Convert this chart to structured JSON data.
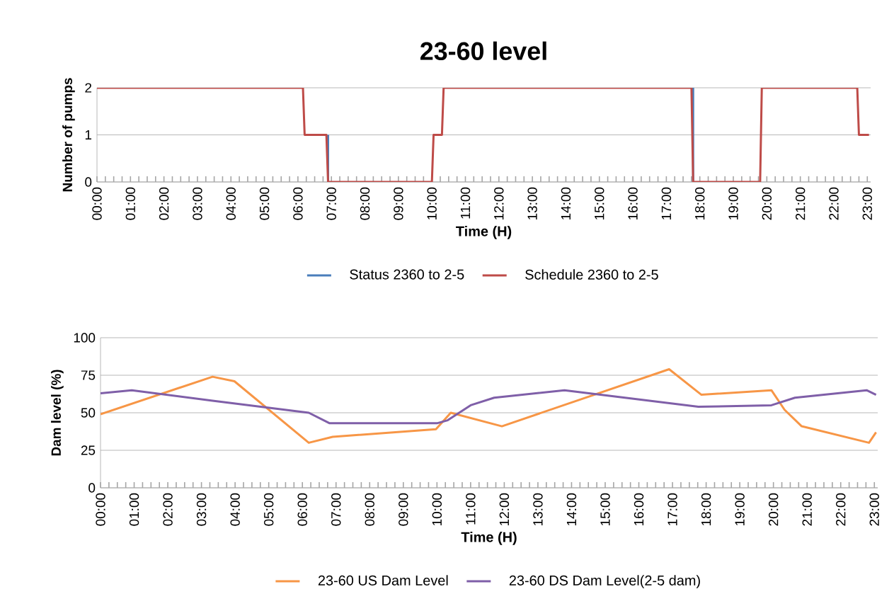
{
  "chart_data": [
    {
      "type": "line",
      "title": "23-60 level",
      "xlabel": "Time (H)",
      "ylabel": "Number of pumps",
      "xlim": [
        0,
        23.1
      ],
      "ylim": [
        0,
        2
      ],
      "yticks": [
        0,
        1,
        2
      ],
      "xticks": [
        {
          "value": 0,
          "label": "00:00"
        },
        {
          "value": 1,
          "label": "01:00"
        },
        {
          "value": 2,
          "label": "02:00"
        },
        {
          "value": 3,
          "label": "03:00"
        },
        {
          "value": 4,
          "label": "04:00"
        },
        {
          "value": 5,
          "label": "05:00"
        },
        {
          "value": 6,
          "label": "06:00"
        },
        {
          "value": 7,
          "label": "07:00"
        },
        {
          "value": 8,
          "label": "08:00"
        },
        {
          "value": 9,
          "label": "09:00"
        },
        {
          "value": 10,
          "label": "10:00"
        },
        {
          "value": 11,
          "label": "11:00"
        },
        {
          "value": 12,
          "label": "12:00"
        },
        {
          "value": 13,
          "label": "13:00"
        },
        {
          "value": 14,
          "label": "14:00"
        },
        {
          "value": 15,
          "label": "15:00"
        },
        {
          "value": 16,
          "label": "16:00"
        },
        {
          "value": 17,
          "label": "17:00"
        },
        {
          "value": 18,
          "label": "18:00"
        },
        {
          "value": 19,
          "label": "19:00"
        },
        {
          "value": 20,
          "label": "20:00"
        },
        {
          "value": 21,
          "label": "21:00"
        },
        {
          "value": 22,
          "label": "22:00"
        },
        {
          "value": 23,
          "label": "23:00"
        }
      ],
      "grid": "y",
      "legend": "bottom",
      "marker": "none",
      "series": [
        {
          "name": "Status 2360 to 2-5",
          "color": "#4a7ebb",
          "x": [
            6.9,
            6.9,
            12,
            17.8,
            17.8
          ],
          "values": [
            1,
            0,
            null,
            2,
            0
          ]
        },
        {
          "name": "Schedule 2360 to 2-5",
          "color": "#be4b48",
          "x": [
            0,
            6.15,
            6.2,
            6.85,
            6.9,
            10.0,
            10.05,
            10.3,
            10.35,
            17.75,
            17.8,
            19.8,
            19.85,
            22.7,
            22.75,
            23.05
          ],
          "values": [
            2,
            2,
            1,
            1,
            0,
            0,
            1,
            1,
            2,
            2,
            0,
            0,
            2,
            2,
            1,
            1
          ]
        }
      ]
    },
    {
      "type": "line",
      "xlabel": "Time (H)",
      "ylabel": "Dam level (%)",
      "xlim": [
        0,
        23.1
      ],
      "ylim": [
        0,
        100
      ],
      "yticks": [
        0,
        25,
        50,
        75,
        100
      ],
      "xticks": [
        {
          "value": 0,
          "label": "00:00"
        },
        {
          "value": 1,
          "label": "01:00"
        },
        {
          "value": 2,
          "label": "02:00"
        },
        {
          "value": 3,
          "label": "03:00"
        },
        {
          "value": 4,
          "label": "04:00"
        },
        {
          "value": 5,
          "label": "05:00"
        },
        {
          "value": 6,
          "label": "06:00"
        },
        {
          "value": 7,
          "label": "07:00"
        },
        {
          "value": 8,
          "label": "08:00"
        },
        {
          "value": 9,
          "label": "09:00"
        },
        {
          "value": 10,
          "label": "10:00"
        },
        {
          "value": 11,
          "label": "11:00"
        },
        {
          "value": 12,
          "label": "12:00"
        },
        {
          "value": 13,
          "label": "13:00"
        },
        {
          "value": 14,
          "label": "14:00"
        },
        {
          "value": 15,
          "label": "15:00"
        },
        {
          "value": 16,
          "label": "16:00"
        },
        {
          "value": 17,
          "label": "17:00"
        },
        {
          "value": 18,
          "label": "18:00"
        },
        {
          "value": 19,
          "label": "19:00"
        },
        {
          "value": 20,
          "label": "20:00"
        },
        {
          "value": 21,
          "label": "21:00"
        },
        {
          "value": 22,
          "label": "22:00"
        },
        {
          "value": 23,
          "label": "23:00"
        }
      ],
      "grid": "y",
      "legend": "bottom",
      "marker": "none",
      "series": [
        {
          "name": "23-60 US Dam Level",
          "color": "#f79646",
          "x": [
            0,
            3.33,
            3.98,
            6.19,
            6.9,
            9.97,
            10.41,
            11.93,
            16.9,
            17.86,
            19.94,
            20.33,
            20.84,
            22.84,
            23.05
          ],
          "values": [
            49,
            74,
            71,
            30,
            34,
            39,
            50,
            41,
            79,
            62,
            65,
            52,
            41,
            30,
            37
          ]
        },
        {
          "name": "23-60 DS Dam Level(2-5 dam)",
          "color": "#7f5fa8",
          "x": [
            0,
            0.93,
            3.33,
            6.19,
            6.81,
            10.0,
            10.32,
            11.0,
            11.7,
            13.79,
            17.77,
            19.94,
            20.64,
            22.77,
            23.05
          ],
          "values": [
            63,
            65,
            58,
            50,
            43,
            43,
            45,
            55,
            60,
            65,
            54,
            55,
            60,
            65,
            62
          ]
        }
      ]
    }
  ]
}
